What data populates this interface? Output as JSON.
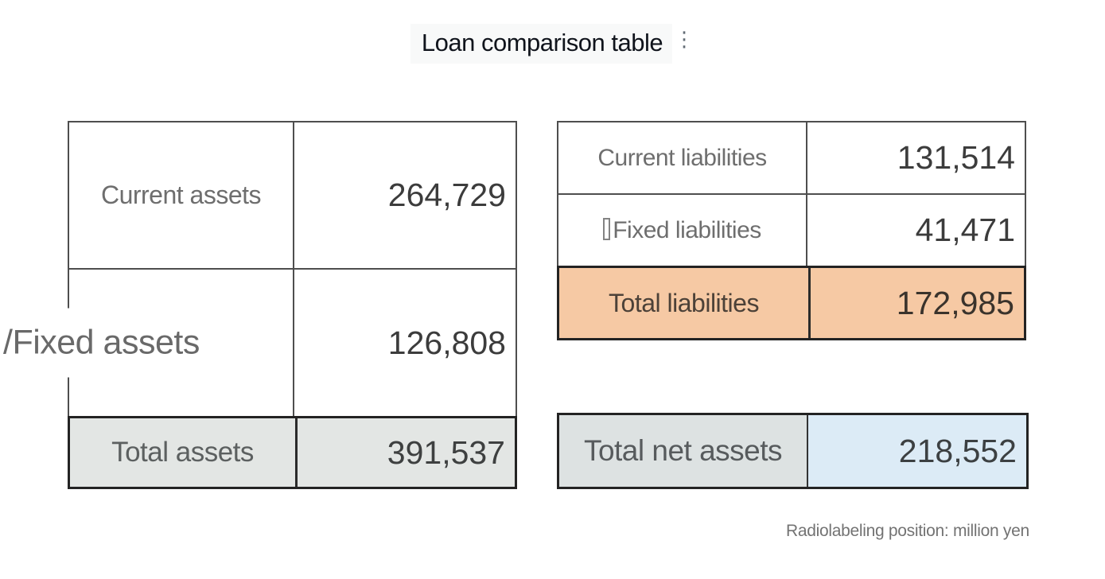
{
  "page": {
    "title": "Loan comparison table",
    "title_mark": "⋮",
    "footnote": "Radiolabeling position: million yen"
  },
  "assets_table": {
    "rows": [
      {
        "label": "Current assets",
        "value": "264,729"
      },
      {
        "label": "/Fixed assets",
        "value": "126,808"
      },
      {
        "label": "Total assets",
        "value": "391,537",
        "highlight": "gray"
      }
    ]
  },
  "liabilities_table": {
    "rows": [
      {
        "label": "Current liabilities",
        "value": "131,514"
      },
      {
        "label": "Fixed liabilities",
        "value": "41,471",
        "label_prefix_icon": "missing-glyph-box"
      },
      {
        "label": "Total liabilities",
        "value": "172,985",
        "highlight": "orange"
      }
    ]
  },
  "net_assets_row": {
    "label": "Total net assets",
    "value": "218,552",
    "label_highlight": "gray",
    "value_highlight": "blue"
  },
  "colors": {
    "highlight_gray": "#e3e6e4",
    "highlight_orange": "#f6c9a4",
    "highlight_blue": "#dcebf6"
  }
}
